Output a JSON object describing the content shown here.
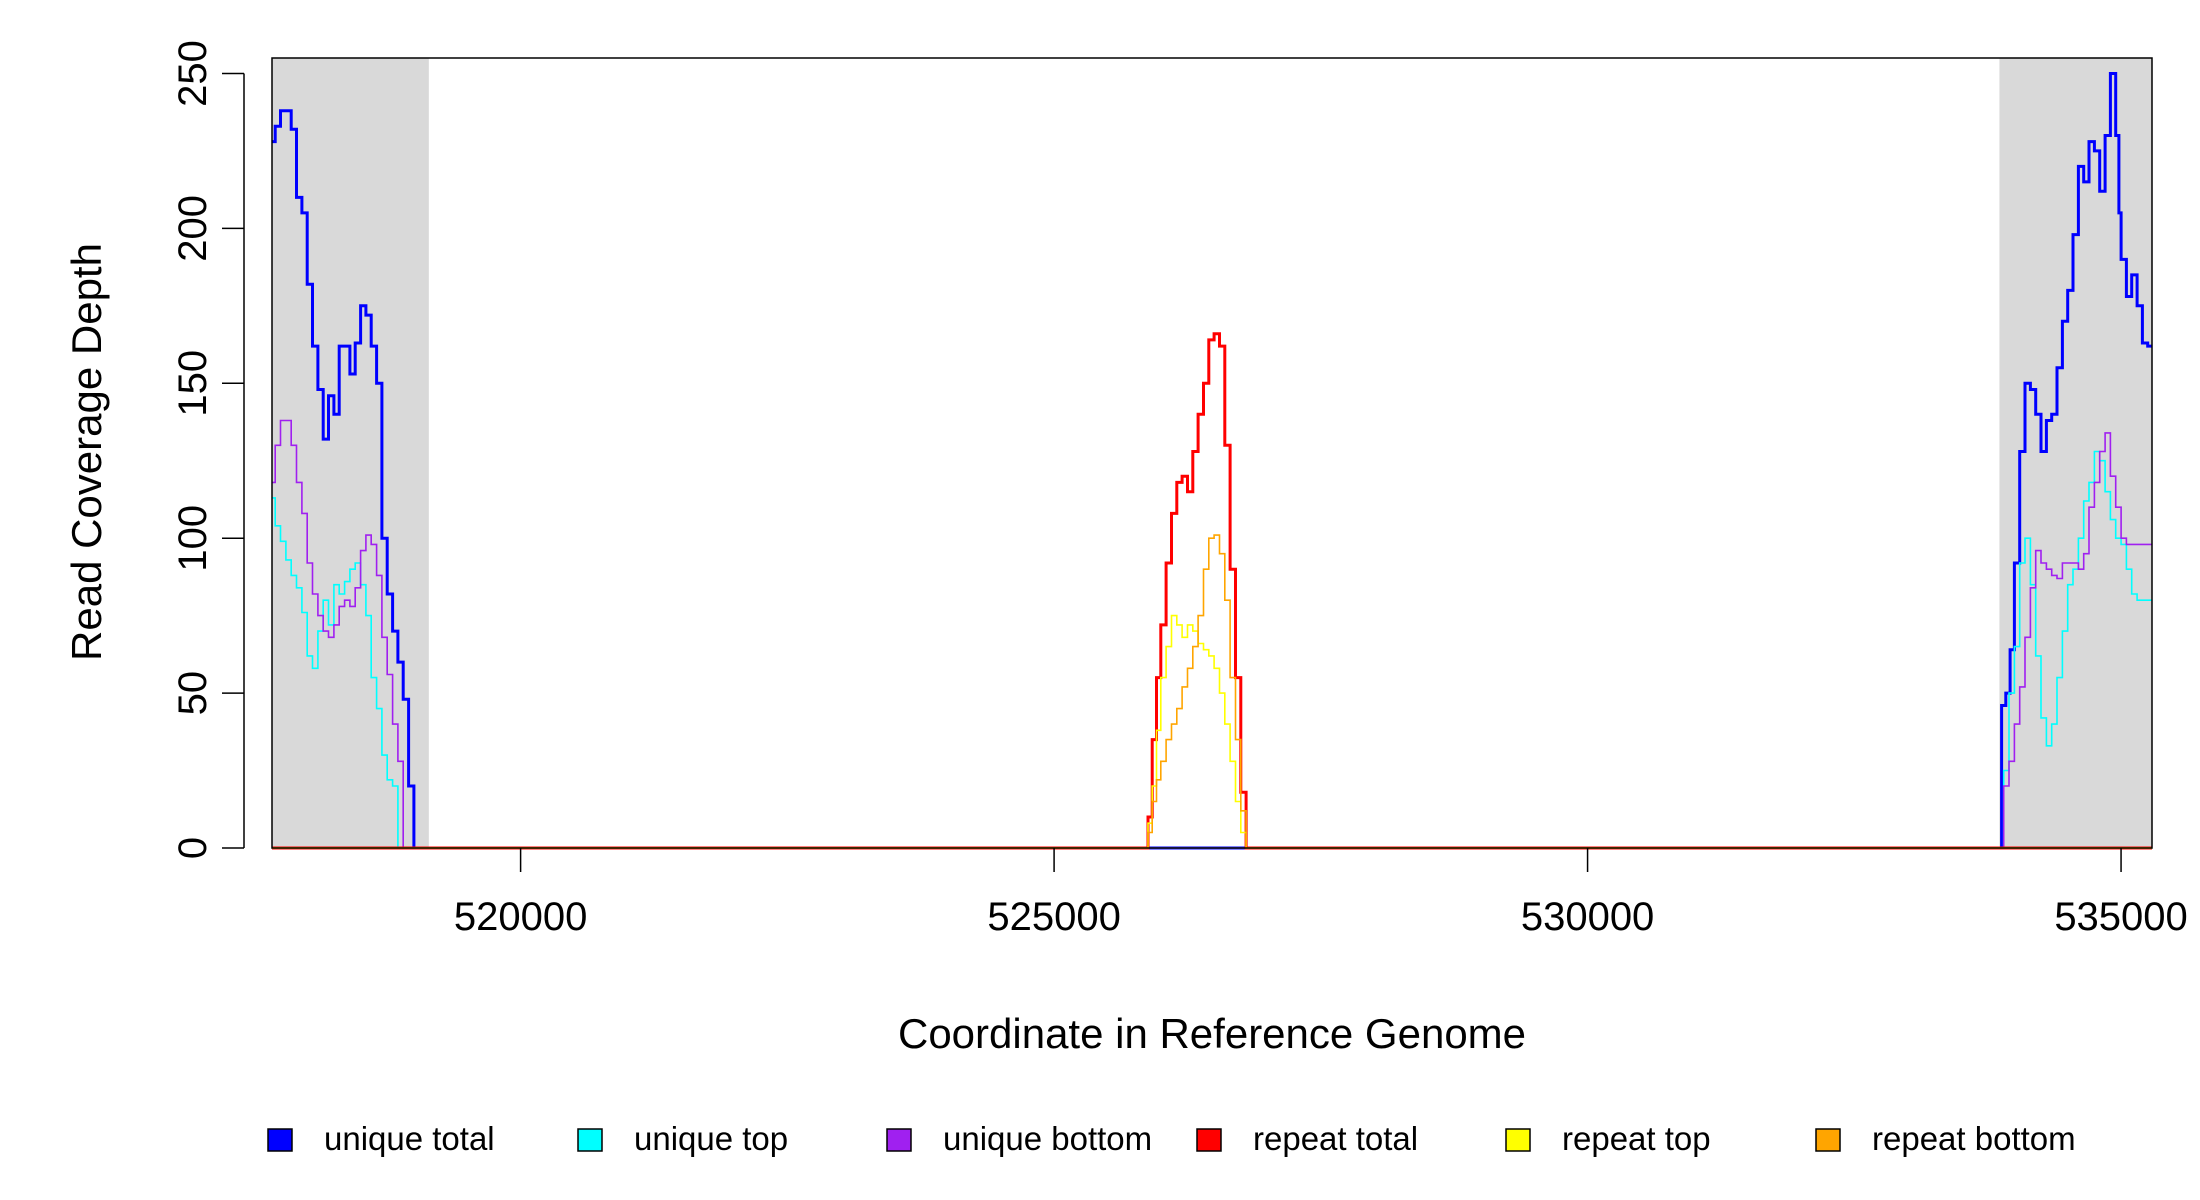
{
  "chart_data": {
    "type": "line",
    "xlabel": "Coordinate in Reference Genome",
    "ylabel": "Read Coverage Depth",
    "xlim": [
      517670,
      535290
    ],
    "ylim": [
      0,
      255
    ],
    "x_ticks": [
      {
        "value": 520000,
        "label": "520000"
      },
      {
        "value": 525000,
        "label": "525000"
      },
      {
        "value": 530000,
        "label": "530000"
      },
      {
        "value": 535000,
        "label": "535000"
      }
    ],
    "y_ticks": [
      {
        "value": 0,
        "label": "0"
      },
      {
        "value": 50,
        "label": "50"
      },
      {
        "value": 100,
        "label": "100"
      },
      {
        "value": 150,
        "label": "150"
      },
      {
        "value": 200,
        "label": "200"
      },
      {
        "value": 250,
        "label": "250"
      }
    ],
    "shaded_regions": [
      [
        517670,
        519140
      ],
      [
        533860,
        535290
      ]
    ],
    "shade_color": "#d9d9d9",
    "grid": false,
    "legend_position": "bottom",
    "series": [
      {
        "name": "unique total",
        "color": "#0000ff",
        "width": 3,
        "x": [
          517670,
          517700,
          517750,
          517800,
          517850,
          517900,
          517950,
          518000,
          518050,
          518100,
          518150,
          518200,
          518250,
          518300,
          518350,
          518400,
          518450,
          518500,
          518550,
          518600,
          518650,
          518700,
          518750,
          518800,
          518850,
          518900,
          518950,
          519000,
          519050,
          519100,
          519130,
          519150,
          533840,
          533860,
          533880,
          533920,
          533960,
          534000,
          534050,
          534100,
          534150,
          534200,
          534250,
          534300,
          534350,
          534400,
          534450,
          534500,
          534550,
          534600,
          534650,
          534700,
          534750,
          534800,
          534850,
          534900,
          534950,
          534980,
          535000,
          535050,
          535100,
          535150,
          535200,
          535250,
          535290
        ],
        "y": [
          228,
          233,
          238,
          238,
          232,
          210,
          205,
          182,
          162,
          148,
          132,
          146,
          140,
          162,
          162,
          153,
          163,
          175,
          172,
          162,
          150,
          100,
          82,
          70,
          60,
          48,
          20,
          0,
          0,
          0,
          0,
          0,
          0,
          0,
          46,
          50,
          64,
          92,
          128,
          150,
          148,
          140,
          128,
          138,
          140,
          155,
          170,
          180,
          198,
          220,
          215,
          228,
          225,
          212,
          230,
          250,
          230,
          205,
          190,
          178,
          185,
          175,
          163,
          162,
          162
        ]
      },
      {
        "name": "unique top",
        "color": "#00ffff",
        "width": 1.6,
        "x": [
          517670,
          517700,
          517750,
          517800,
          517850,
          517900,
          517950,
          518000,
          518050,
          518100,
          518150,
          518200,
          518250,
          518300,
          518350,
          518400,
          518450,
          518500,
          518550,
          518600,
          518650,
          518700,
          518750,
          518800,
          518850,
          518900,
          518950,
          519000,
          519050,
          519100,
          519150,
          533840,
          533860,
          533900,
          533950,
          534000,
          534050,
          534100,
          534150,
          534200,
          534250,
          534300,
          534350,
          534400,
          534450,
          534500,
          534550,
          534600,
          534650,
          534700,
          534750,
          534800,
          534850,
          534900,
          534950,
          535000,
          535050,
          535100,
          535150,
          535200,
          535250,
          535290
        ],
        "y": [
          113,
          104,
          99,
          93,
          88,
          84,
          76,
          62,
          58,
          70,
          80,
          72,
          85,
          82,
          86,
          90,
          92,
          85,
          75,
          55,
          45,
          30,
          22,
          20,
          0,
          0,
          0,
          0,
          0,
          0,
          0,
          0,
          0,
          25,
          50,
          65,
          92,
          100,
          85,
          62,
          42,
          33,
          40,
          55,
          70,
          85,
          90,
          100,
          112,
          118,
          128,
          125,
          115,
          106,
          100,
          98,
          90,
          82,
          80,
          80,
          80,
          80
        ]
      },
      {
        "name": "unique bottom",
        "color": "#a020f0",
        "width": 1.6,
        "x": [
          517670,
          517700,
          517750,
          517800,
          517850,
          517900,
          517950,
          518000,
          518050,
          518100,
          518150,
          518200,
          518250,
          518300,
          518350,
          518400,
          518450,
          518500,
          518550,
          518600,
          518650,
          518700,
          518750,
          518800,
          518850,
          518900,
          518950,
          519000,
          519050,
          519100,
          519150,
          533840,
          533860,
          533900,
          533950,
          534000,
          534050,
          534100,
          534150,
          534200,
          534250,
          534300,
          534350,
          534400,
          534450,
          534500,
          534550,
          534600,
          534650,
          534700,
          534750,
          534800,
          534850,
          534900,
          534950,
          535000,
          535050,
          535100,
          535150,
          535200,
          535250,
          535290
        ],
        "y": [
          118,
          130,
          138,
          138,
          130,
          118,
          108,
          92,
          82,
          75,
          70,
          68,
          72,
          78,
          80,
          78,
          84,
          96,
          101,
          98,
          88,
          68,
          56,
          40,
          28,
          0,
          0,
          0,
          0,
          0,
          0,
          0,
          0,
          20,
          28,
          40,
          52,
          68,
          84,
          96,
          92,
          90,
          88,
          87,
          92,
          92,
          92,
          90,
          95,
          110,
          118,
          128,
          134,
          120,
          110,
          100,
          98,
          98,
          98,
          98,
          98,
          98
        ]
      },
      {
        "name": "repeat total",
        "color": "#ff0000",
        "width": 3,
        "x": [
          517670,
          525800,
          525880,
          525920,
          525960,
          526000,
          526050,
          526100,
          526150,
          526200,
          526250,
          526300,
          526350,
          526400,
          526450,
          526500,
          526550,
          526600,
          526650,
          526700,
          526750,
          526800,
          535290
        ],
        "y": [
          0,
          0,
          10,
          35,
          55,
          72,
          92,
          108,
          118,
          120,
          115,
          128,
          140,
          150,
          164,
          166,
          162,
          130,
          90,
          55,
          18,
          0,
          0
        ]
      },
      {
        "name": "repeat top",
        "color": "#ffff00",
        "width": 1.6,
        "x": [
          517670,
          525800,
          525880,
          525920,
          525960,
          526000,
          526050,
          526100,
          526150,
          526200,
          526250,
          526300,
          526350,
          526400,
          526450,
          526500,
          526550,
          526600,
          526650,
          526700,
          526750,
          526800,
          535290
        ],
        "y": [
          0,
          0,
          8,
          20,
          38,
          55,
          65,
          75,
          72,
          68,
          72,
          70,
          66,
          64,
          62,
          58,
          50,
          40,
          28,
          15,
          5,
          0,
          0
        ]
      },
      {
        "name": "repeat bottom",
        "color": "#ffa500",
        "width": 1.6,
        "x": [
          517670,
          525800,
          525880,
          525920,
          525960,
          526000,
          526050,
          526100,
          526150,
          526200,
          526250,
          526300,
          526350,
          526400,
          526450,
          526500,
          526550,
          526600,
          526650,
          526700,
          526750,
          526800,
          535290
        ],
        "y": [
          0,
          0,
          5,
          15,
          22,
          28,
          35,
          40,
          45,
          52,
          58,
          65,
          75,
          90,
          100,
          101,
          95,
          80,
          55,
          35,
          12,
          0,
          0
        ]
      }
    ]
  }
}
